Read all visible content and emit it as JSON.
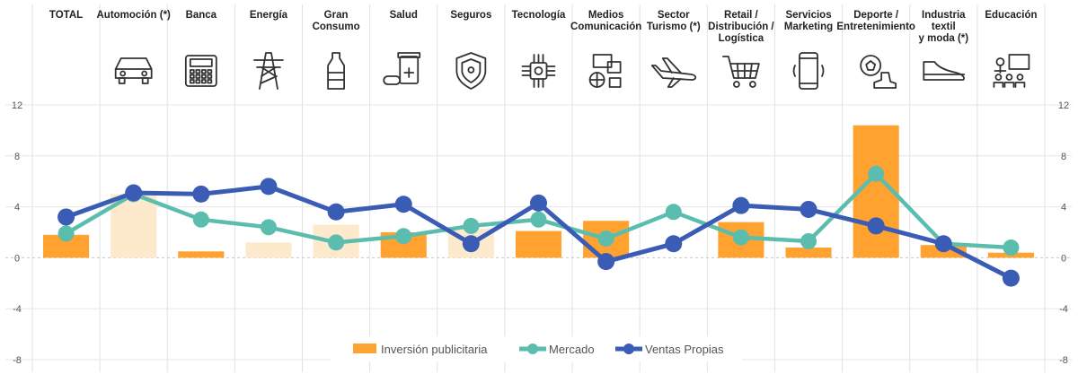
{
  "chart_data": {
    "type": "bar",
    "title": "",
    "xlabel": "",
    "ylabel": "",
    "categories": [
      "TOTAL",
      "Automoción (*)",
      "Banca",
      "Energía",
      "Gran\nConsumo",
      "Salud",
      "Seguros",
      "Tecnología",
      "Medios\nComunicación",
      "Sector\nTurismo (*)",
      "Retail /\nDistribución /\nLogística",
      "Servicios\nMarketing",
      "Deporte /\nEntretenimiento",
      "Industria\ntextil\ny moda (*)",
      "Educación"
    ],
    "icons": [
      "",
      "car-icon",
      "calculator-icon",
      "power-tower-icon",
      "bottle-icon",
      "medicine-icon",
      "shield-icon",
      "chip-icon",
      "media-icon",
      "airplane-icon",
      "cart-icon",
      "smartphone-icon",
      "sports-icon",
      "shoe-icon",
      "classroom-icon"
    ],
    "ylim": [
      -8,
      12
    ],
    "yticks": [
      12,
      8,
      4,
      0,
      -4,
      -8
    ],
    "grid": true,
    "legend_position": "bottom",
    "series": [
      {
        "name": "Inversión publicitaria",
        "type": "bar",
        "color": "#FFA22F",
        "values": [
          1.8,
          5.0,
          0.5,
          1.2,
          2.6,
          2.0,
          2.3,
          2.1,
          2.9,
          0,
          2.8,
          0.8,
          10.4,
          1.0,
          0.4
        ],
        "faded": [
          false,
          true,
          false,
          true,
          true,
          false,
          true,
          false,
          false,
          false,
          false,
          false,
          false,
          false,
          false
        ],
        "faded_color": "#FDE9CC"
      },
      {
        "name": "Mercado",
        "type": "line",
        "color": "#5BBDAE",
        "values": [
          1.9,
          5.0,
          3.0,
          2.4,
          1.2,
          1.7,
          2.5,
          3.0,
          1.5,
          3.6,
          1.6,
          1.3,
          6.6,
          1.1,
          0.8
        ]
      },
      {
        "name": "Ventas Propias",
        "type": "line",
        "color": "#3A5CB5",
        "values": [
          3.2,
          5.1,
          5.0,
          5.6,
          3.6,
          4.2,
          1.1,
          4.3,
          -0.3,
          1.1,
          4.1,
          3.8,
          2.5,
          1.1,
          -1.6
        ]
      }
    ]
  }
}
